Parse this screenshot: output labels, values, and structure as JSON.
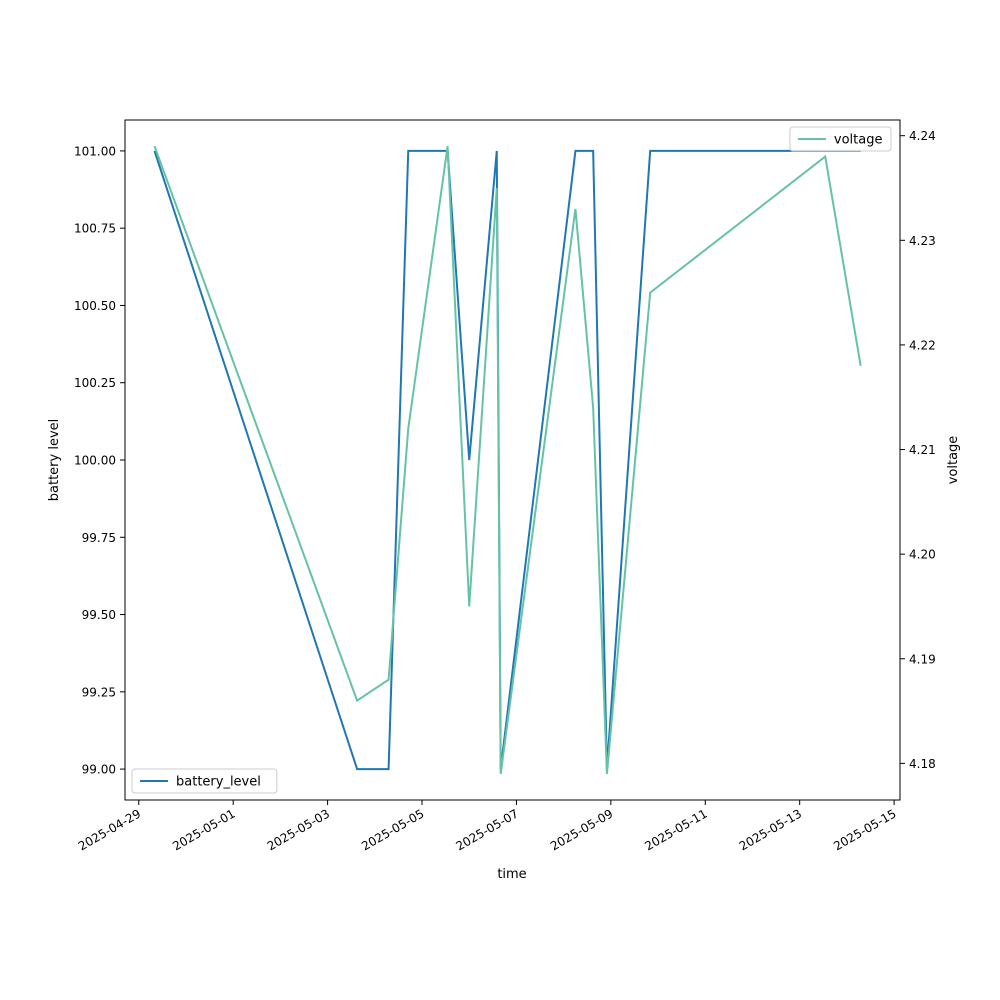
{
  "chart_data": {
    "type": "line",
    "xlabel": "time",
    "ylabel": "battery level",
    "y2label": "voltage",
    "xlim": [
      "2025-04-28T17:00",
      "2025-05-15T03:00"
    ],
    "ylim": [
      98.9,
      101.1
    ],
    "y2lim": [
      4.1765,
      4.2415
    ],
    "x_ticks": [
      "2025-04-29",
      "2025-05-01",
      "2025-05-03",
      "2025-05-05",
      "2025-05-07",
      "2025-05-09",
      "2025-05-11",
      "2025-05-13",
      "2025-05-15"
    ],
    "y_ticks": [
      "99.00",
      "99.25",
      "99.50",
      "99.75",
      "100.00",
      "100.25",
      "100.50",
      "100.75",
      "101.00"
    ],
    "y2_ticks": [
      "4.18",
      "4.19",
      "4.20",
      "4.21",
      "4.22",
      "4.23",
      "4.24"
    ],
    "grid": false,
    "series": [
      {
        "name": "battery_level",
        "axis": "left",
        "color": "#1f77b4",
        "legend": "lower-left",
        "points": [
          [
            "2025-04-29T08:00",
            101.0
          ],
          [
            "2025-05-03T15:00",
            99.0
          ],
          [
            "2025-05-04T07:00",
            99.0
          ],
          [
            "2025-05-04T17:00",
            101.0
          ],
          [
            "2025-05-05T13:00",
            101.0
          ],
          [
            "2025-05-06T00:00",
            100.0
          ],
          [
            "2025-05-06T14:00",
            101.0
          ],
          [
            "2025-05-06T16:00",
            99.0
          ],
          [
            "2025-05-08T06:00",
            101.0
          ],
          [
            "2025-05-08T15:00",
            101.0
          ],
          [
            "2025-05-08T22:00",
            99.0
          ],
          [
            "2025-05-09T20:00",
            101.0
          ],
          [
            "2025-05-14T07:00",
            101.0
          ]
        ]
      },
      {
        "name": "voltage",
        "axis": "right",
        "color": "#66c2a5",
        "legend": "upper-right",
        "points": [
          [
            "2025-04-29T08:00",
            4.239
          ],
          [
            "2025-05-03T15:00",
            4.186
          ],
          [
            "2025-05-04T07:00",
            4.188
          ],
          [
            "2025-05-04T17:00",
            4.212
          ],
          [
            "2025-05-05T13:00",
            4.239
          ],
          [
            "2025-05-06T00:00",
            4.195
          ],
          [
            "2025-05-06T14:00",
            4.235
          ],
          [
            "2025-05-06T16:00",
            4.179
          ],
          [
            "2025-05-08T06:00",
            4.233
          ],
          [
            "2025-05-08T15:00",
            4.214
          ],
          [
            "2025-05-08T22:00",
            4.179
          ],
          [
            "2025-05-09T20:00",
            4.225
          ],
          [
            "2025-05-13T13:00",
            4.238
          ],
          [
            "2025-05-14T07:00",
            4.218
          ]
        ]
      }
    ]
  }
}
